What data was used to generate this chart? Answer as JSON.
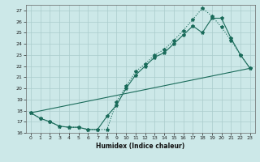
{
  "title": "",
  "xlabel": "Humidex (Indice chaleur)",
  "bg_color": "#cce8e8",
  "grid_color": "#aacccc",
  "line_color": "#1a6b5a",
  "xlim": [
    -0.5,
    23.5
  ],
  "ylim": [
    16,
    27.5
  ],
  "yticks": [
    16,
    17,
    18,
    19,
    20,
    21,
    22,
    23,
    24,
    25,
    26,
    27
  ],
  "xticks": [
    0,
    1,
    2,
    3,
    4,
    5,
    6,
    7,
    8,
    9,
    10,
    11,
    12,
    13,
    14,
    15,
    16,
    17,
    18,
    19,
    20,
    21,
    22,
    23
  ],
  "curve_upper_x": [
    0,
    1,
    2,
    3,
    4,
    5,
    6,
    7,
    8,
    9,
    10,
    11,
    12,
    13,
    14,
    15,
    16,
    17,
    18,
    19,
    20,
    21,
    22,
    23
  ],
  "curve_upper_y": [
    17.8,
    17.3,
    17.0,
    16.6,
    16.5,
    16.5,
    16.3,
    16.3,
    16.3,
    18.8,
    20.2,
    21.5,
    22.2,
    23.0,
    23.5,
    24.3,
    25.2,
    26.2,
    27.2,
    26.5,
    25.5,
    24.3,
    23.0,
    21.8
  ],
  "curve_lower_x": [
    0,
    1,
    2,
    3,
    4,
    5,
    6,
    7,
    8,
    9,
    10,
    11,
    12,
    13,
    14,
    15,
    16,
    17,
    18,
    19,
    20,
    21,
    22,
    23
  ],
  "curve_lower_y": [
    17.8,
    17.3,
    17.0,
    16.6,
    16.5,
    16.5,
    16.3,
    16.3,
    17.5,
    18.5,
    20.0,
    21.2,
    22.0,
    22.8,
    23.2,
    24.0,
    24.8,
    25.6,
    25.0,
    26.3,
    26.3,
    24.5,
    23.0,
    21.8
  ],
  "curve_line_x": [
    0,
    23
  ],
  "curve_line_y": [
    17.8,
    21.8
  ]
}
